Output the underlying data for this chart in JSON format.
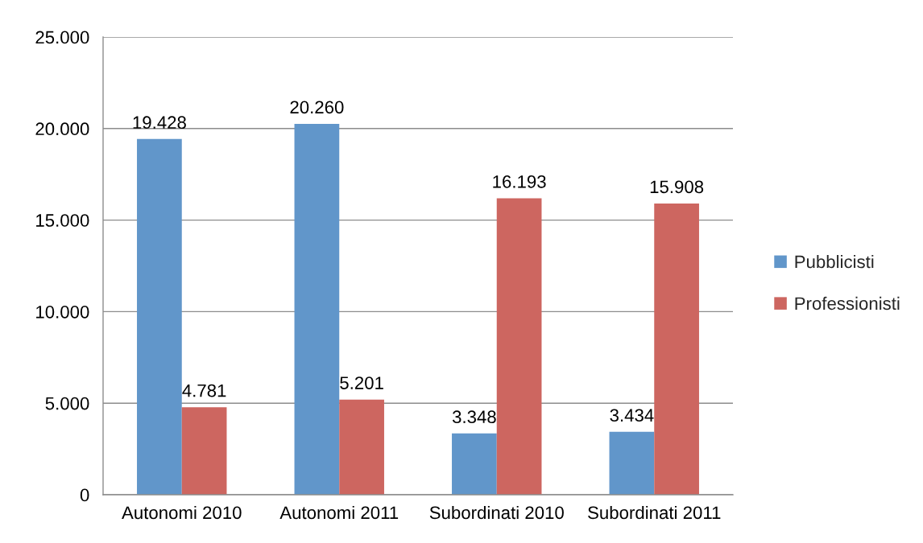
{
  "chart_data": {
    "type": "bar",
    "categories": [
      "Autonomi 2010",
      "Autonomi 2011",
      "Subordinati 2010",
      "Subordinati 2011"
    ],
    "series": [
      {
        "name": "Pubblicisti",
        "color": "#6196ca",
        "values": [
          19428,
          20260,
          3348,
          3434
        ],
        "value_labels": [
          "19.428",
          "20.260",
          "3.348",
          "3.434"
        ]
      },
      {
        "name": "Professionisti",
        "color": "#cd6660",
        "values": [
          4781,
          5201,
          16193,
          15908
        ],
        "value_labels": [
          "4.781",
          "5.201",
          "16.193",
          "15.908"
        ]
      }
    ],
    "ylim": [
      0,
      25000
    ],
    "yticks": [
      0,
      {
        "value": 5000,
        "label": "5.000"
      },
      {
        "value": 10000,
        "label": "10.000"
      },
      {
        "value": 15000,
        "label": "15.000"
      },
      {
        "value": 20000,
        "label": "20.000"
      },
      {
        "value": 25000,
        "label": "25.000"
      }
    ],
    "grid": "y",
    "legend": "right"
  }
}
